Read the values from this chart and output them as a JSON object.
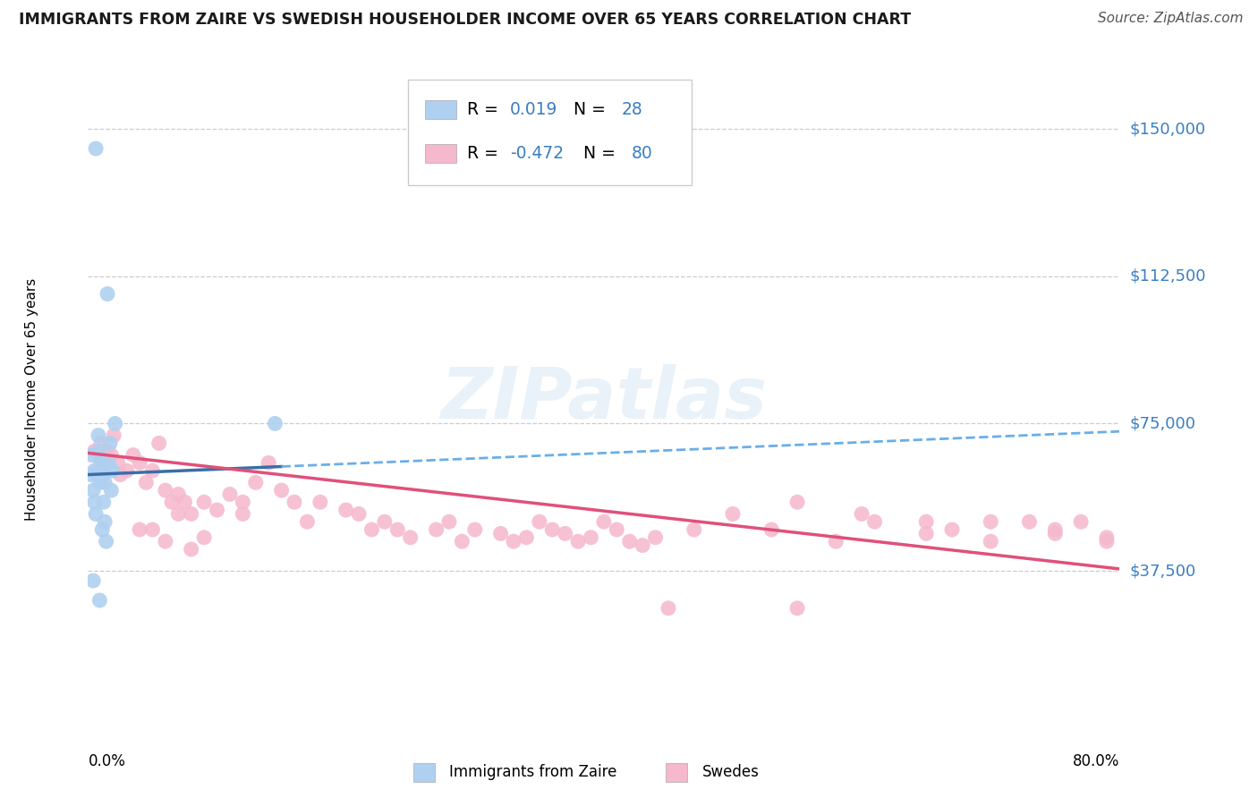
{
  "title": "IMMIGRANTS FROM ZAIRE VS SWEDISH HOUSEHOLDER INCOME OVER 65 YEARS CORRELATION CHART",
  "source": "Source: ZipAtlas.com",
  "ylabel": "Householder Income Over 65 years",
  "xlim": [
    0.0,
    80.0
  ],
  "ylim": [
    0,
    162500
  ],
  "yticks": [
    0,
    37500,
    75000,
    112500,
    150000
  ],
  "ytick_labels": [
    "",
    "$37,500",
    "$75,000",
    "$112,500",
    "$150,000"
  ],
  "legend_blue_r": "0.019",
  "legend_blue_n": "28",
  "legend_pink_r": "-0.472",
  "legend_pink_n": "80",
  "legend_label_blue": "Immigrants from Zaire",
  "legend_label_pink": "Swedes",
  "blue_color": "#afd0f0",
  "pink_color": "#f5b8cc",
  "trend_blue_solid_color": "#3a6ea8",
  "trend_blue_dash_color": "#6aaee8",
  "trend_pink_color": "#e0507a",
  "watermark_text": "ZIPatlas",
  "legend_text_color": "#3a7fc1",
  "legend_r_color_blue": "#3a7fc1",
  "legend_r_color_pink": "#e0507a",
  "blue_trend_x0": 0.0,
  "blue_trend_y0": 62000,
  "blue_trend_x1": 80.0,
  "blue_trend_y1": 73000,
  "pink_trend_x0": 0.0,
  "pink_trend_y0": 67500,
  "pink_trend_x1": 80.0,
  "pink_trend_y1": 38000,
  "blue_solid_end_x": 15.0,
  "blue_scatter_x": [
    1.2,
    1.5,
    2.1,
    1.8,
    1.0,
    0.8,
    1.3,
    0.5,
    0.9,
    1.1,
    0.6,
    0.7,
    1.4,
    0.4,
    1.6,
    0.3,
    1.9,
    0.2,
    1.7,
    0.8,
    1.2,
    0.5,
    1.0,
    1.3,
    0.9,
    0.6,
    14.5,
    0.4
  ],
  "blue_scatter_y": [
    62000,
    108000,
    75000,
    58000,
    65000,
    68000,
    50000,
    55000,
    60000,
    48000,
    52000,
    62000,
    45000,
    58000,
    65000,
    67000,
    63000,
    62000,
    70000,
    72000,
    55000,
    63000,
    64000,
    60000,
    30000,
    145000,
    75000,
    35000
  ],
  "pink_scatter_x": [
    0.5,
    0.8,
    1.0,
    1.2,
    1.5,
    1.8,
    2.0,
    2.3,
    2.5,
    3.0,
    3.5,
    4.0,
    4.5,
    5.0,
    5.5,
    6.0,
    6.5,
    7.0,
    7.5,
    8.0,
    9.0,
    10.0,
    11.0,
    12.0,
    13.0,
    14.0,
    15.0,
    16.0,
    17.0,
    18.0,
    20.0,
    21.0,
    22.0,
    23.0,
    24.0,
    25.0,
    27.0,
    28.0,
    29.0,
    30.0,
    32.0,
    33.0,
    34.0,
    35.0,
    36.0,
    37.0,
    38.0,
    39.0,
    40.0,
    41.0,
    42.0,
    43.0,
    44.0,
    45.0,
    47.0,
    50.0,
    53.0,
    55.0,
    58.0,
    61.0,
    65.0,
    67.0,
    70.0,
    73.0,
    75.0,
    77.0,
    79.0,
    4.0,
    5.0,
    6.0,
    7.0,
    8.0,
    9.0,
    55.0,
    60.0,
    65.0,
    70.0,
    75.0,
    79.0,
    12.0
  ],
  "pink_scatter_y": [
    68000,
    67000,
    70000,
    65000,
    68000,
    67000,
    72000,
    65000,
    62000,
    63000,
    67000,
    65000,
    60000,
    63000,
    70000,
    58000,
    55000,
    57000,
    55000,
    52000,
    55000,
    53000,
    57000,
    55000,
    60000,
    65000,
    58000,
    55000,
    50000,
    55000,
    53000,
    52000,
    48000,
    50000,
    48000,
    46000,
    48000,
    50000,
    45000,
    48000,
    47000,
    45000,
    46000,
    50000,
    48000,
    47000,
    45000,
    46000,
    50000,
    48000,
    45000,
    44000,
    46000,
    28000,
    48000,
    52000,
    48000,
    55000,
    45000,
    50000,
    47000,
    48000,
    45000,
    50000,
    47000,
    50000,
    46000,
    48000,
    48000,
    45000,
    52000,
    43000,
    46000,
    28000,
    52000,
    50000,
    50000,
    48000,
    45000,
    52000
  ]
}
